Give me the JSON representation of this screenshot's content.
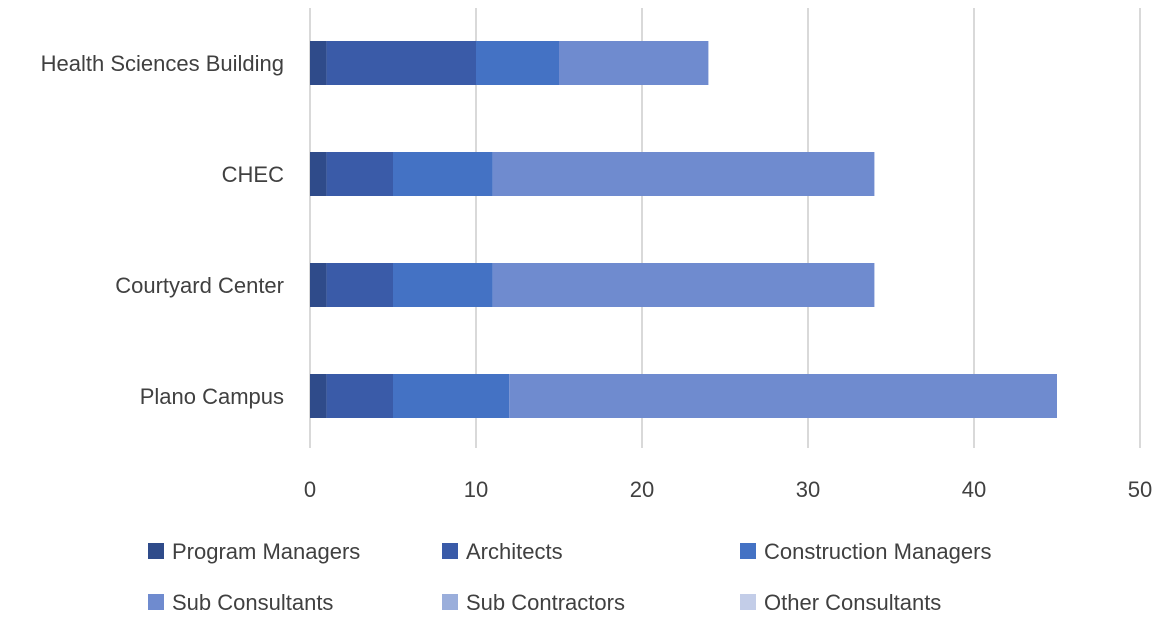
{
  "chart_data": {
    "type": "bar",
    "orientation": "horizontal",
    "stacked": true,
    "title": "",
    "xlabel": "",
    "ylabel": "",
    "categories": [
      "Health Sciences Building",
      "CHEC",
      "Courtyard Center",
      "Plano Campus"
    ],
    "series": [
      {
        "name": "Program Managers",
        "color": "#2F4B8A",
        "values": [
          1,
          1,
          1,
          1
        ]
      },
      {
        "name": "Architects",
        "color": "#3A5BA8",
        "values": [
          9,
          4,
          4,
          4
        ]
      },
      {
        "name": "Construction Managers",
        "color": "#4472C4",
        "values": [
          5,
          6,
          6,
          7
        ]
      },
      {
        "name": "Sub Consultants",
        "color": "#6F8BCF",
        "values": [
          9,
          23,
          23,
          33
        ]
      },
      {
        "name": "Sub Contractors",
        "color": "#9AAEDB",
        "values": [
          0,
          0,
          0,
          0
        ]
      },
      {
        "name": "Other Consultants",
        "color": "#C3CDE8",
        "values": [
          0,
          0,
          0,
          0
        ]
      }
    ],
    "xlim": [
      0,
      50
    ],
    "xticks": [
      0,
      10,
      20,
      30,
      40,
      50
    ],
    "grid": true,
    "legend_position": "bottom"
  }
}
